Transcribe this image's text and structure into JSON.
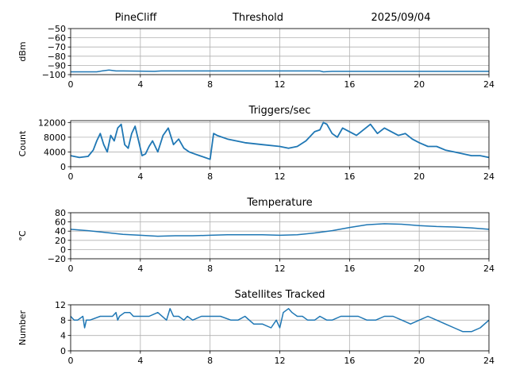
{
  "header": {
    "station": "PineCliff",
    "subtitle": "Threshold",
    "date": "2025/09/04"
  },
  "colors": {
    "series": "#1f77b4",
    "grid": "#b0b0b0"
  },
  "chart_data": [
    {
      "type": "line",
      "title": "",
      "ylabel": "dBm",
      "xlim": [
        0,
        24
      ],
      "ylim": [
        -100,
        -50
      ],
      "xticks": [
        0,
        4,
        8,
        12,
        16,
        20,
        24
      ],
      "yticks": [
        -50,
        -60,
        -70,
        -80,
        -90,
        -100
      ],
      "ytick_labels": [
        "−50",
        "−60",
        "−70",
        "−80",
        "−90",
        "−100"
      ],
      "grid": true,
      "series": [
        {
          "x": [
            0,
            1.5,
            1.8,
            2.2,
            2.6,
            3.0,
            4.8,
            5.2,
            8,
            14.3,
            14.5,
            15,
            24
          ],
          "values": [
            -97,
            -97,
            -96,
            -95,
            -96,
            -96,
            -96.5,
            -96,
            -96,
            -96,
            -97,
            -96.5,
            -96.5
          ]
        }
      ]
    },
    {
      "type": "line",
      "title": "Triggers/sec",
      "ylabel": "Count",
      "xlim": [
        0,
        24
      ],
      "ylim": [
        0,
        12500
      ],
      "xticks": [
        0,
        4,
        8,
        12,
        16,
        20,
        24
      ],
      "yticks": [
        0,
        4000,
        8000,
        12000
      ],
      "ytick_labels": [
        "0",
        "4000",
        "8000",
        "12000"
      ],
      "grid": true,
      "series": [
        {
          "x": [
            0,
            0.5,
            1,
            1.3,
            1.5,
            1.7,
            1.9,
            2.1,
            2.3,
            2.5,
            2.7,
            2.9,
            3.1,
            3.3,
            3.5,
            3.7,
            3.9,
            4.1,
            4.3,
            4.5,
            4.7,
            5.0,
            5.3,
            5.6,
            5.9,
            6.2,
            6.5,
            6.8,
            7.1,
            7.4,
            7.7,
            8.0,
            8.2,
            8.4,
            9,
            10,
            11,
            12,
            12.5,
            13,
            13.5,
            14,
            14.3,
            14.5,
            14.7,
            15,
            15.3,
            15.6,
            16,
            16.4,
            16.8,
            17.2,
            17.6,
            18,
            18.4,
            18.8,
            19.2,
            19.6,
            20,
            20.5,
            21,
            21.5,
            22,
            22.5,
            23,
            23.5,
            24
          ],
          "values": [
            3000,
            2500,
            2800,
            4500,
            7000,
            9000,
            6000,
            4000,
            8500,
            7000,
            10500,
            11500,
            6000,
            5000,
            9000,
            11000,
            7000,
            3000,
            3500,
            5500,
            7000,
            4000,
            8500,
            10500,
            6000,
            7500,
            5000,
            4000,
            3500,
            3000,
            2500,
            2000,
            9000,
            8500,
            7500,
            6500,
            6000,
            5500,
            5000,
            5500,
            7000,
            9500,
            10000,
            12000,
            11500,
            9000,
            8000,
            10500,
            9500,
            8500,
            10000,
            11500,
            9000,
            10500,
            9500,
            8500,
            9000,
            7500,
            6500,
            5500,
            5500,
            4500,
            4000,
            3500,
            3000,
            3000,
            2500
          ]
        }
      ]
    },
    {
      "type": "line",
      "title": "Temperature",
      "ylabel": "°C",
      "xlim": [
        0,
        24
      ],
      "ylim": [
        -20,
        80
      ],
      "xticks": [
        0,
        4,
        8,
        12,
        16,
        20,
        24
      ],
      "yticks": [
        -20,
        0,
        20,
        40,
        60,
        80
      ],
      "ytick_labels": [
        "−20",
        "0",
        "20",
        "40",
        "60",
        "80"
      ],
      "grid": true,
      "series": [
        {
          "x": [
            0,
            1,
            2,
            3,
            4,
            5,
            6,
            7,
            8,
            9,
            10,
            11,
            12,
            13,
            14,
            15,
            16,
            17,
            18,
            19,
            20,
            21,
            22,
            23,
            24
          ],
          "values": [
            44,
            41,
            37,
            33,
            31,
            29,
            30,
            30,
            31,
            32,
            32,
            32,
            31,
            32,
            36,
            41,
            48,
            54,
            56,
            55,
            52,
            50,
            49,
            47,
            44
          ]
        }
      ]
    },
    {
      "type": "line",
      "title": "Satellites Tracked",
      "ylabel": "Number",
      "xlim": [
        0,
        24
      ],
      "ylim": [
        0,
        12
      ],
      "xticks": [
        0,
        4,
        8,
        12,
        16,
        20,
        24
      ],
      "yticks": [
        0,
        4,
        8,
        12
      ],
      "ytick_labels": [
        "0",
        "4",
        "8",
        "12"
      ],
      "grid": true,
      "series": [
        {
          "x": [
            0,
            0.2,
            0.4,
            0.7,
            0.8,
            0.9,
            1.1,
            1.7,
            1.9,
            2.4,
            2.6,
            2.7,
            2.8,
            3.1,
            3.4,
            3.6,
            4.0,
            4.5,
            5.0,
            5.5,
            5.7,
            5.9,
            6.2,
            6.5,
            6.7,
            7.0,
            7.5,
            8.0,
            8.3,
            8.6,
            9.2,
            9.6,
            10.0,
            10.5,
            11.0,
            11.5,
            11.8,
            12.0,
            12.2,
            12.5,
            12.7,
            13.0,
            13.3,
            13.6,
            14.0,
            14.3,
            14.7,
            15.0,
            15.5,
            16.0,
            16.5,
            17.0,
            17.5,
            18.0,
            18.5,
            19.0,
            19.5,
            20.0,
            20.5,
            21.0,
            21.5,
            22.0,
            22.5,
            23.0,
            23.5,
            24.0
          ],
          "values": [
            9,
            8,
            8,
            9,
            6,
            8,
            8,
            9,
            9,
            9,
            10,
            8,
            9,
            10,
            10,
            9,
            9,
            9,
            10,
            8,
            11,
            9,
            9,
            8,
            9,
            8,
            9,
            9,
            9,
            9,
            8,
            8,
            9,
            7,
            7,
            6,
            8,
            6,
            10,
            11,
            10,
            9,
            9,
            8,
            8,
            9,
            8,
            8,
            9,
            9,
            9,
            8,
            8,
            9,
            9,
            8,
            7,
            8,
            9,
            8,
            7,
            6,
            5,
            5,
            6,
            8
          ]
        }
      ]
    }
  ]
}
